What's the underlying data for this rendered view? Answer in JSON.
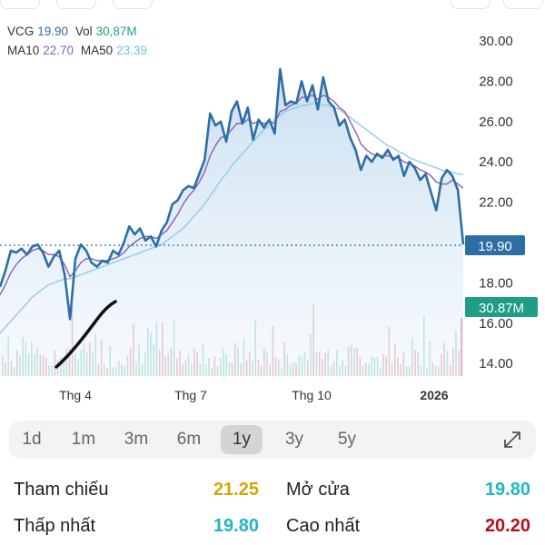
{
  "legend": {
    "ticker": "VCG",
    "price": "19.90",
    "vol_label": "Vol",
    "vol_value": "30,87M",
    "ma10_label": "MA10",
    "ma10_value": "22.70",
    "ma50_label": "MA50",
    "ma50_value": "23.39"
  },
  "colors": {
    "price_line": "#2e6ea6",
    "ma10": "#8a5fb3",
    "ma50": "#8fcbea",
    "ref_yellow": "#d6a500",
    "cyan": "#1fb5c5",
    "red": "#b3101b",
    "vol_badge": "#1f9d87"
  },
  "chart_data": {
    "type": "line",
    "y_ticks": [
      "30.00",
      "28.00",
      "26.00",
      "24.00",
      "22.00",
      "18.00",
      "16.00",
      "14.00"
    ],
    "x_ticks": [
      "Thg 4",
      "Thg 7",
      "Thg 10",
      "2026"
    ],
    "ylim": [
      14,
      30
    ],
    "price_badge": "19.90",
    "volume_badge": "30.87M",
    "series": [
      {
        "name": "VCG",
        "values": [
          17.8,
          18.6,
          19.6,
          19.5,
          19.7,
          19.4,
          19.8,
          19.9,
          19.5,
          18.8,
          19.3,
          19.6,
          18.4,
          16.2,
          19.2,
          19.9,
          19.6,
          19.0,
          18.8,
          19.1,
          19.0,
          19.6,
          19.4,
          20.0,
          20.8,
          20.4,
          20.7,
          20.1,
          20.3,
          19.8,
          20.6,
          21.0,
          21.9,
          22.1,
          22.6,
          22.8,
          22.7,
          23.4,
          24.1,
          26.4,
          25.8,
          26.0,
          25.0,
          26.5,
          27.0,
          25.9,
          26.7,
          25.1,
          26.1,
          25.7,
          26.1,
          25.4,
          28.6,
          26.8,
          27.0,
          26.9,
          28.0,
          27.0,
          27.8,
          26.6,
          28.2,
          27.0,
          26.7,
          25.8,
          26.1,
          25.2,
          24.6,
          23.6,
          24.3,
          24.0,
          24.4,
          24.2,
          24.6,
          24.1,
          24.3,
          23.3,
          24.0,
          23.7,
          23.1,
          23.4,
          22.5,
          21.6,
          23.2,
          23.6,
          23.3,
          22.6,
          19.9
        ]
      },
      {
        "name": "MA10",
        "values": [
          17.4,
          17.9,
          18.5,
          18.9,
          19.2,
          19.4,
          19.6,
          19.7,
          19.6,
          19.4,
          19.4,
          19.3,
          18.9,
          18.3,
          18.6,
          19.0,
          19.2,
          19.2,
          19.1,
          19.1,
          19.1,
          19.2,
          19.3,
          19.5,
          19.8,
          20.0,
          20.2,
          20.3,
          20.3,
          20.2,
          20.4,
          20.6,
          21.0,
          21.4,
          21.9,
          22.3,
          22.6,
          23.0,
          23.5,
          24.3,
          24.8,
          25.2,
          25.3,
          25.6,
          25.9,
          25.9,
          26.1,
          25.9,
          26.0,
          25.9,
          26.0,
          25.9,
          26.5,
          26.6,
          26.8,
          26.9,
          27.2,
          27.2,
          27.3,
          27.1,
          27.3,
          27.2,
          27.0,
          26.7,
          26.5,
          26.0,
          25.5,
          24.9,
          24.6,
          24.4,
          24.3,
          24.3,
          24.3,
          24.2,
          24.2,
          24.0,
          23.9,
          23.8,
          23.6,
          23.5,
          23.3,
          23.0,
          22.9,
          22.9,
          23.1,
          22.9,
          22.7
        ]
      },
      {
        "name": "MA50",
        "values": [
          15.5,
          15.8,
          16.1,
          16.4,
          16.7,
          17.0,
          17.3,
          17.5,
          17.7,
          17.9,
          18.0,
          18.1,
          18.2,
          18.2,
          18.3,
          18.4,
          18.5,
          18.6,
          18.7,
          18.8,
          18.9,
          19.0,
          19.1,
          19.2,
          19.3,
          19.4,
          19.5,
          19.6,
          19.7,
          19.8,
          19.9,
          20.1,
          20.3,
          20.5,
          20.7,
          21.0,
          21.3,
          21.6,
          21.9,
          22.3,
          22.7,
          23.1,
          23.4,
          23.8,
          24.1,
          24.4,
          24.7,
          25.0,
          25.3,
          25.6,
          25.8,
          26.1,
          26.3,
          26.5,
          26.6,
          26.7,
          26.8,
          26.8,
          26.9,
          26.9,
          26.8,
          26.8,
          26.7,
          26.6,
          26.4,
          26.2,
          26.0,
          25.8,
          25.6,
          25.4,
          25.2,
          25.0,
          24.8,
          24.7,
          24.5,
          24.4,
          24.2,
          24.1,
          24.0,
          23.9,
          23.8,
          23.7,
          23.6,
          23.5,
          23.5,
          23.4,
          23.39
        ]
      }
    ]
  },
  "periods": [
    "1d",
    "1m",
    "3m",
    "6m",
    "1y",
    "3y",
    "5y"
  ],
  "active_period": "1y",
  "stats": {
    "ref_label": "Tham chiếu",
    "ref_value": "21.25",
    "open_label": "Mở cửa",
    "open_value": "19.80",
    "low_label": "Thấp nhất",
    "low_value": "19.80",
    "high_label": "Cao nhất",
    "high_value": "20.20"
  }
}
